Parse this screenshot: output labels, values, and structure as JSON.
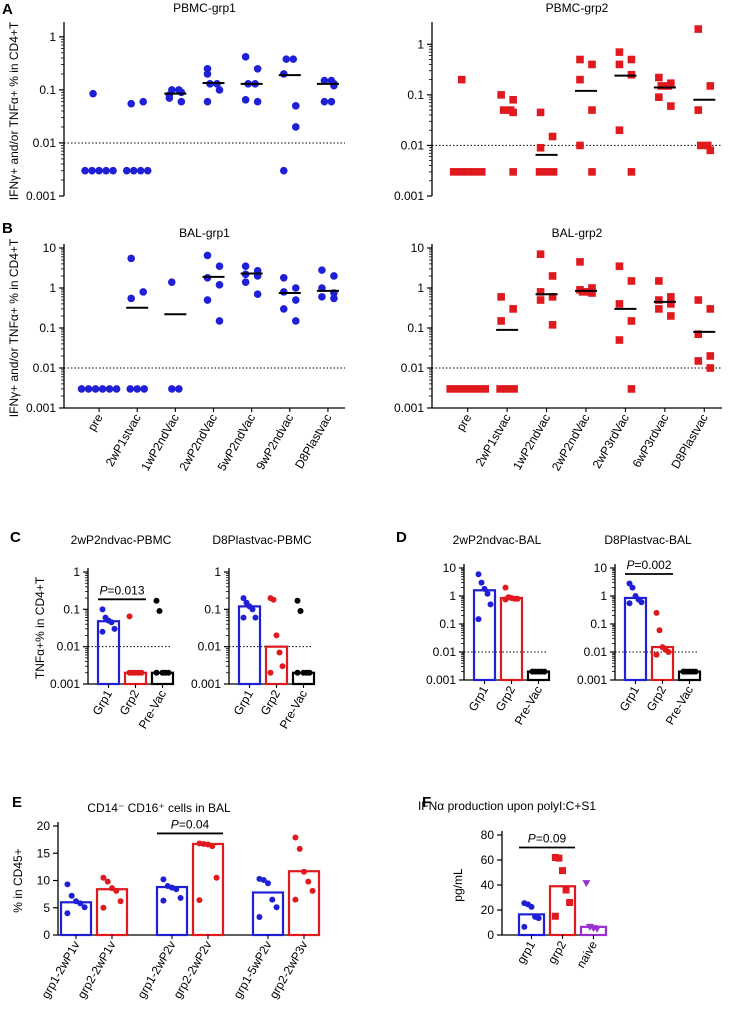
{
  "figure": {
    "panel_labels": [
      "A",
      "B",
      "C",
      "D",
      "E",
      "F"
    ]
  },
  "colors": {
    "grp1": "#1f1fd6",
    "grp2": "#e0191f",
    "pre": "#000000",
    "naive": "#9a2fd0"
  },
  "chart_data": [
    {
      "id": "A1",
      "type": "scatter",
      "title": "PBMC-grp1",
      "yscale": "log",
      "ylim": [
        0.001,
        1.6
      ],
      "yticks": [
        1,
        0.1,
        0.01,
        0.001
      ],
      "ytick_labels": [
        "1",
        "0.1",
        "0.01",
        "0.001"
      ],
      "ylabel": "IFNγ+ and/or TNFα+ % in CD4+T",
      "threshold": 0.01,
      "marker": "circle",
      "color": "#1f1fd6",
      "categories": [
        "pre",
        "2wP1stvac",
        "1wP2ndVac",
        "2wP2ndVac",
        "5wP2ndVac",
        "9wP2ndvac",
        "D8Plastvac"
      ],
      "values": [
        [
          0.085,
          0.003,
          0.003,
          0.003,
          0.003,
          0.003
        ],
        [
          0.055,
          0.06,
          0.003,
          0.003,
          0.003,
          0.003
        ],
        [
          0.08,
          0.09,
          0.07,
          0.06,
          0.1,
          0.1
        ],
        [
          0.25,
          0.13,
          0.2,
          0.1,
          0.06,
          0.13
        ],
        [
          0.42,
          0.25,
          0.13,
          0.13,
          0.065,
          0.06
        ],
        [
          0.38,
          0.38,
          0.2,
          0.05,
          0.003,
          0.02
        ],
        [
          0.15,
          0.12,
          0.15,
          0.06,
          0.06,
          0.13
        ]
      ],
      "medians": [
        null,
        null,
        0.085,
        0.135,
        0.13,
        0.19,
        0.13
      ]
    },
    {
      "id": "A2",
      "type": "scatter",
      "title": "PBMC-grp2",
      "yscale": "log",
      "ylim": [
        0.001,
        2.3
      ],
      "yticks": [
        1,
        0.1,
        0.01,
        0.001
      ],
      "ytick_labels": [
        "1",
        "0.1",
        "0.01",
        "0.001"
      ],
      "ylabel": "",
      "threshold": 0.01,
      "marker": "square",
      "color": "#e0191f",
      "categories": [
        "pre",
        "2wP1stvac",
        "1wP2ndvac",
        "2wP2ndVac",
        "2wP3rdVac",
        "6wP3rdvac",
        "D8Plastvac"
      ],
      "values": [
        [
          0.2,
          0.003,
          0.003,
          0.003,
          0.003,
          0.003
        ],
        [
          0.1,
          0.08,
          0.05,
          0.045,
          0.05,
          0.003
        ],
        [
          0.045,
          0.015,
          0.009,
          0.003,
          0.003,
          0.003
        ],
        [
          0.5,
          0.4,
          0.2,
          0.05,
          0.01,
          0.003
        ],
        [
          0.7,
          0.5,
          0.4,
          0.25,
          0.02,
          0.003
        ],
        [
          0.22,
          0.17,
          0.15,
          0.15,
          0.09,
          0.06
        ],
        [
          2.0,
          0.15,
          0.05,
          0.01,
          0.01,
          0.008
        ]
      ],
      "medians": [
        null,
        null,
        0.0065,
        0.12,
        0.24,
        0.14,
        0.08
      ]
    },
    {
      "id": "B1",
      "type": "scatter",
      "title": "BAL-grp1",
      "yscale": "log",
      "ylim": [
        0.001,
        10
      ],
      "yticks": [
        10,
        1,
        0.1,
        0.01,
        0.001
      ],
      "ytick_labels": [
        "10",
        "1",
        "0.1",
        "0.01",
        "0.001"
      ],
      "ylabel": "IFNγ+ and/or TNFα+ % in CD4+T",
      "threshold": 0.01,
      "marker": "circle",
      "color": "#1f1fd6",
      "categories": [
        "pre",
        "2wP1stvac",
        "1wP2ndVac",
        "2wP2ndVac",
        "5wP2ndVac",
        "9wP2ndvac",
        "D8Plastvac"
      ],
      "values": [
        [
          0.003,
          0.003,
          0.003,
          0.003,
          0.003,
          0.003
        ],
        [
          5.5,
          0.8,
          0.55,
          0.003,
          0.003,
          0.003
        ],
        [
          1.4,
          0.003,
          0.003
        ],
        [
          6.5,
          3.5,
          1.8,
          1.2,
          0.5,
          0.15
        ],
        [
          3.5,
          2.7,
          2.2,
          2.0,
          1.4,
          0.7
        ],
        [
          1.8,
          1.0,
          0.8,
          0.5,
          0.3,
          0.15
        ],
        [
          2.8,
          2.0,
          1.0,
          0.75,
          0.6,
          0.55
        ]
      ],
      "medians": [
        null,
        0.32,
        0.22,
        1.9,
        2.3,
        0.75,
        0.85
      ]
    },
    {
      "id": "B2",
      "type": "scatter",
      "title": "BAL-grp2",
      "yscale": "log",
      "ylim": [
        0.001,
        10
      ],
      "yticks": [
        10,
        1,
        0.1,
        0.01,
        0.001
      ],
      "ytick_labels": [
        "10",
        "1",
        "0.1",
        "0.01",
        "0.001"
      ],
      "ylabel": "",
      "threshold": 0.01,
      "marker": "square",
      "color": "#e0191f",
      "categories": [
        "pre",
        "2wP1stvac",
        "1wP2ndvac",
        "2wP2ndVac",
        "2wP3rdVac",
        "6wP3rdvac",
        "D8Plastvac"
      ],
      "values": [
        [
          0.003,
          0.003,
          0.003,
          0.003,
          0.003,
          0.003
        ],
        [
          0.6,
          0.3,
          0.15,
          0.003,
          0.003,
          0.003
        ],
        [
          7.0,
          2.0,
          0.8,
          0.6,
          0.5,
          0.12
        ],
        [
          4.5,
          1.0,
          0.9,
          0.8,
          0.8,
          0.75
        ],
        [
          3.5,
          1.5,
          0.4,
          0.15,
          0.05,
          0.003
        ],
        [
          1.5,
          0.6,
          0.5,
          0.4,
          0.3,
          0.2
        ],
        [
          0.5,
          0.3,
          0.07,
          0.02,
          0.015,
          0.01
        ]
      ],
      "medians": [
        null,
        0.09,
        0.7,
        0.85,
        0.3,
        0.45,
        0.08
      ]
    },
    {
      "id": "C1",
      "type": "bar",
      "title": "2wP2ndvac-PBMC",
      "yscale": "log",
      "ylim": [
        0.001,
        1
      ],
      "yticks": [
        1,
        0.1,
        0.01,
        0.001
      ],
      "ytick_labels": [
        "1",
        "0.1",
        "0.01",
        "0.001"
      ],
      "ylabel": "TNFα+% in CD4+T",
      "threshold": 0.01,
      "categories": [
        "Grp1",
        "Grp2",
        "Pre-Vac"
      ],
      "bar_values": [
        0.048,
        0.002,
        0.002
      ],
      "points": [
        [
          0.1,
          0.06,
          0.05,
          0.045,
          0.03,
          0.025
        ],
        [
          0.065,
          0.002,
          0.002,
          0.002,
          0.002,
          0.002
        ],
        [
          0.17,
          0.09,
          0.002,
          0.002,
          0.002,
          0.002
        ]
      ],
      "annotation": "P=0.013",
      "annotation_between": [
        0,
        1
      ]
    },
    {
      "id": "C2",
      "type": "bar",
      "title": "D8Plastvac-PBMC",
      "yscale": "log",
      "ylim": [
        0.001,
        1
      ],
      "yticks": [
        1,
        0.1,
        0.01,
        0.001
      ],
      "ytick_labels": [
        "1",
        "0.1",
        "0.01",
        "0.001"
      ],
      "ylabel": "",
      "threshold": 0.01,
      "categories": [
        "Grp1",
        "Grp2",
        "Pre-Vac"
      ],
      "bar_values": [
        0.12,
        0.01,
        0.002
      ],
      "points": [
        [
          0.2,
          0.15,
          0.12,
          0.1,
          0.06,
          0.06
        ],
        [
          0.2,
          0.18,
          0.02,
          0.007,
          0.003,
          0.002
        ],
        [
          0.17,
          0.09,
          0.002,
          0.002,
          0.002,
          0.002
        ]
      ],
      "annotation": "",
      "annotation_between": null
    },
    {
      "id": "D1",
      "type": "bar",
      "title": "2wP2ndvac-BAL",
      "yscale": "log",
      "ylim": [
        0.001,
        10
      ],
      "yticks": [
        10,
        1,
        0.1,
        0.01,
        0.001
      ],
      "ytick_labels": [
        "10",
        "1",
        "0.1",
        "0.01",
        "0.001"
      ],
      "ylabel": "",
      "threshold": 0.01,
      "categories": [
        "Grp1",
        "Grp2",
        "Pre-Vac"
      ],
      "bar_values": [
        1.6,
        0.85,
        0.002
      ],
      "points": [
        [
          6.0,
          3.0,
          1.8,
          1.2,
          0.5,
          0.15
        ],
        [
          2.0,
          0.9,
          0.85,
          0.8,
          0.8,
          0.75
        ],
        [
          0.002,
          0.002,
          0.002,
          0.002,
          0.002,
          0.002
        ]
      ],
      "annotation": "",
      "annotation_between": null
    },
    {
      "id": "D2",
      "type": "bar",
      "title": "D8Plastvac-BAL",
      "yscale": "log",
      "ylim": [
        0.001,
        10
      ],
      "yticks": [
        10,
        1,
        0.1,
        0.01,
        0.001
      ],
      "ytick_labels": [
        "10",
        "1",
        "0.1",
        "0.01",
        "0.001"
      ],
      "ylabel": "",
      "threshold": 0.01,
      "categories": [
        "Grp1",
        "Grp2",
        "Pre-Vac"
      ],
      "bar_values": [
        0.85,
        0.015,
        0.002
      ],
      "points": [
        [
          2.8,
          2.0,
          1.0,
          0.75,
          0.6,
          0.55
        ],
        [
          0.25,
          0.06,
          0.015,
          0.012,
          0.01,
          0.008
        ],
        [
          0.002,
          0.002,
          0.002,
          0.002,
          0.002,
          0.002
        ]
      ],
      "annotation": "P=0.002",
      "annotation_between": [
        0,
        1
      ]
    },
    {
      "id": "E",
      "type": "bar",
      "title": "CD14⁻ CD16⁺ cells in BAL",
      "yscale": "linear",
      "ylim": [
        0,
        20
      ],
      "yticks": [
        0,
        5,
        10,
        15,
        20
      ],
      "ytick_labels": [
        "0",
        "5",
        "10",
        "15",
        "20"
      ],
      "ylabel": "% in CD45+",
      "categories": [
        "grp1-2wP1v",
        "grp2-2wP1v",
        "grp1-2wP2v",
        "grp2-2wP2v",
        "grp1-5wP2v",
        "grp2-2wP3v"
      ],
      "group_of_category": [
        "grp1",
        "grp2",
        "grp1",
        "grp2",
        "grp1",
        "grp2"
      ],
      "bar_values": [
        6.0,
        8.4,
        8.8,
        16.7,
        7.8,
        11.7
      ],
      "points": [
        [
          9.3,
          7.2,
          6.2,
          5.8,
          5.1,
          4.0
        ],
        [
          10.5,
          9.8,
          8.6,
          8.1,
          6.2,
          5.0
        ],
        [
          10.2,
          9.0,
          8.7,
          8.4,
          6.8,
          6.3
        ],
        [
          16.8,
          16.7,
          16.6,
          16.3,
          10.5,
          6.4
        ],
        [
          10.3,
          10.1,
          9.5,
          6.5,
          5.1,
          3.3
        ],
        [
          17.9,
          15.8,
          11.6,
          9.8,
          8.1,
          6.5
        ]
      ],
      "annotation": "P=0.04",
      "annotation_between": [
        2,
        3
      ]
    },
    {
      "id": "F",
      "type": "bar",
      "title": "IFNα production upon polyI:C+S1",
      "yscale": "linear",
      "ylim": [
        0,
        80
      ],
      "yticks": [
        0,
        20,
        40,
        60,
        80
      ],
      "ytick_labels": [
        "0",
        "20",
        "40",
        "60",
        "80"
      ],
      "ylabel": "pg/mL",
      "categories": [
        "grp1",
        "grp2",
        "naive"
      ],
      "bar_values": [
        16.5,
        39.0,
        6.5
      ],
      "points": [
        [
          25.5,
          24.5,
          22.5,
          14.5,
          13.5,
          6.5
        ],
        [
          62.0,
          61.5,
          51.5,
          36.0,
          26.0,
          15.0
        ],
        [
          41.5,
          6.5,
          5.5,
          5.0
        ]
      ],
      "annotation": "P=0.09",
      "annotation_between": [
        0,
        1
      ]
    }
  ]
}
